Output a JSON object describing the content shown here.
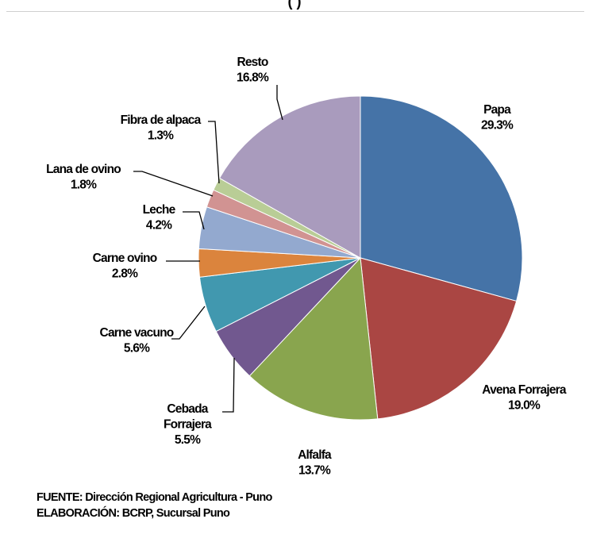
{
  "header": {
    "title_fragment": "(                                  )"
  },
  "footer": {
    "source": "FUENTE: Dirección Regional Agricultura - Puno",
    "elaboration": "ELABORACIÓN: BCRP, Sucursal Puno"
  },
  "chart_data": {
    "type": "pie",
    "title": "",
    "start_angle": "12 o'clock",
    "direction": "clockwise",
    "slices": [
      {
        "label": [
          "Papa"
        ],
        "pct": "29.3%",
        "value": 29.3,
        "color": "#4573A7"
      },
      {
        "label": [
          "Avena Forrajera"
        ],
        "pct": "19.0%",
        "value": 19.0,
        "color": "#AA4643"
      },
      {
        "label": [
          "Alfalfa"
        ],
        "pct": "13.7%",
        "value": 13.7,
        "color": "#89A54E"
      },
      {
        "label": [
          "Cebada",
          "Forrajera"
        ],
        "pct": "5.5%",
        "value": 5.5,
        "color": "#71588F"
      },
      {
        "label": [
          "Carne vacuno"
        ],
        "pct": "5.6%",
        "value": 5.6,
        "color": "#4198AF"
      },
      {
        "label": [
          "Carne ovino"
        ],
        "pct": "2.8%",
        "value": 2.8,
        "color": "#DB843D"
      },
      {
        "label": [
          "Leche"
        ],
        "pct": "4.2%",
        "value": 4.2,
        "color": "#93A9CF"
      },
      {
        "label": [
          "Lana de ovino"
        ],
        "pct": "1.8%",
        "value": 1.8,
        "color": "#D19392"
      },
      {
        "label": [
          "Fibra de alpaca"
        ],
        "pct": "1.3%",
        "value": 1.3,
        "color": "#B9CD96"
      },
      {
        "label": [
          "Resto"
        ],
        "pct": "16.8%",
        "value": 16.8,
        "color": "#A99BBD"
      }
    ]
  }
}
